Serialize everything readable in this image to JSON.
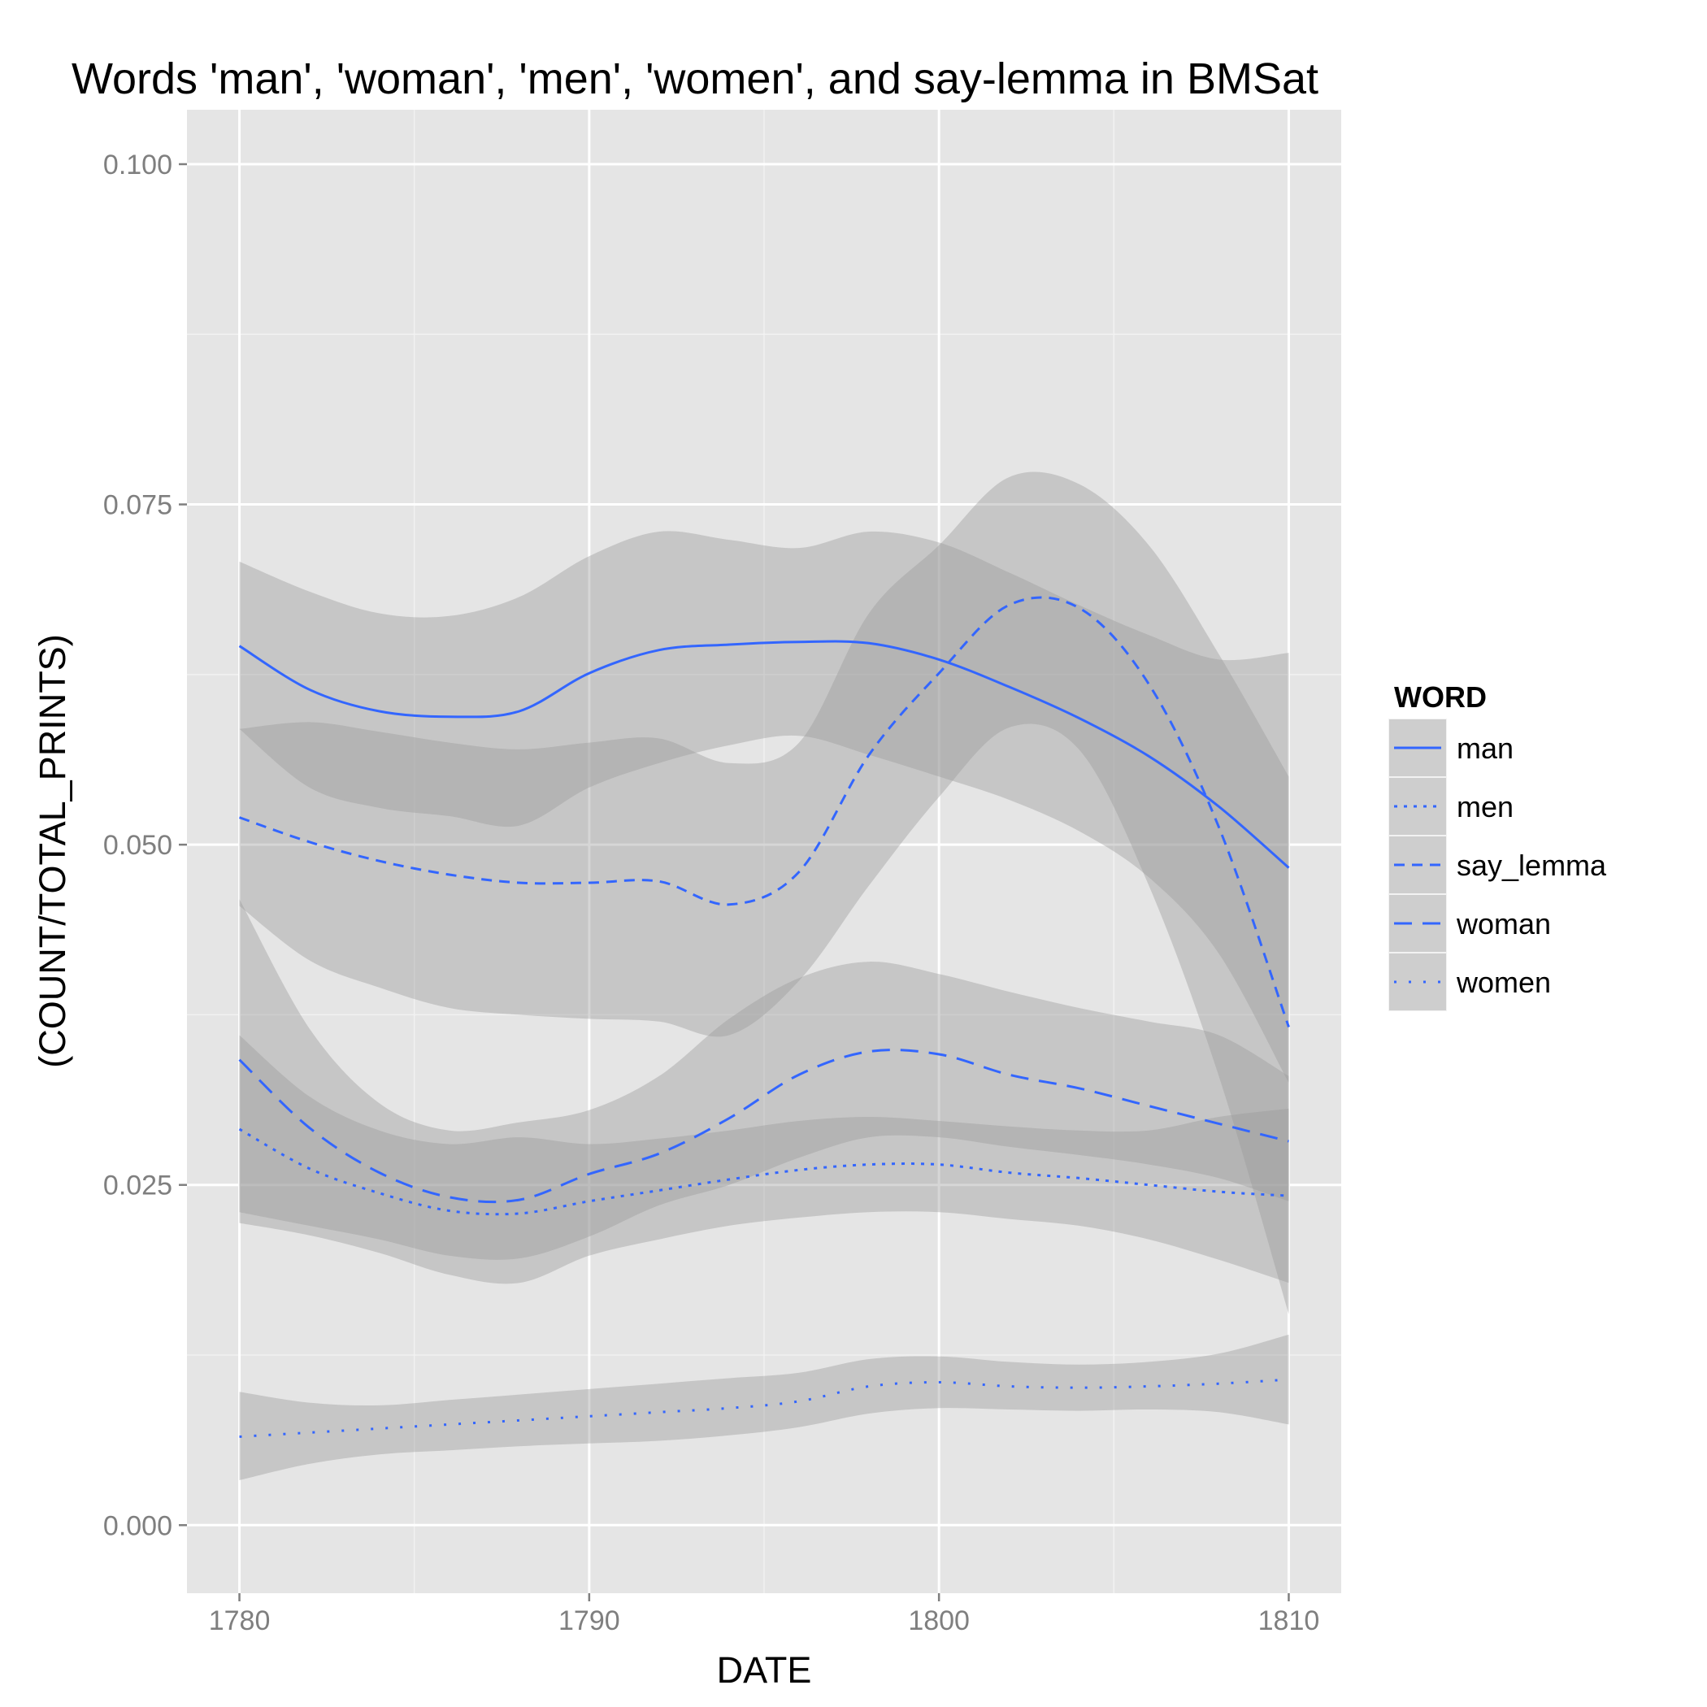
{
  "chart_data": {
    "type": "line",
    "title": "Words 'man', 'woman', 'men', 'women', and say-lemma in BMSat",
    "xlabel": "DATE",
    "ylabel": "(COUNT/TOTAL_PRINTS)",
    "xlim": [
      1778.5,
      1811.5
    ],
    "ylim": [
      -0.005,
      0.104
    ],
    "x_ticks": [
      1780,
      1790,
      1800,
      1810
    ],
    "x_tick_labels": [
      "1780",
      "1790",
      "1800",
      "1810"
    ],
    "x_minor_ticks": [
      1785,
      1795,
      1805
    ],
    "y_ticks": [
      0.0,
      0.025,
      0.05,
      0.075,
      0.1
    ],
    "y_tick_labels": [
      "0.000",
      "0.025",
      "0.050",
      "0.075",
      "0.100"
    ],
    "y_minor_ticks": [
      0.0125,
      0.0375,
      0.0625,
      0.0875
    ],
    "grid": true,
    "legend": {
      "title": "WORD",
      "position": "right"
    },
    "line_color": "#3366FF",
    "band_color": "#999999",
    "panel_color": "#E5E5E5",
    "x": [
      1780,
      1782,
      1784,
      1786,
      1788,
      1790,
      1792,
      1794,
      1796,
      1798,
      1800,
      1802,
      1804,
      1806,
      1808,
      1810
    ],
    "series": [
      {
        "name": "man",
        "dash": "solid",
        "values": [
          0.0646,
          0.0614,
          0.0598,
          0.0594,
          0.0598,
          0.0626,
          0.0643,
          0.0647,
          0.0649,
          0.0648,
          0.0636,
          0.0616,
          0.0593,
          0.0565,
          0.0528,
          0.0483
        ],
        "lower": [
          0.0585,
          0.0542,
          0.0527,
          0.0521,
          0.0514,
          0.0542,
          0.056,
          0.0573,
          0.058,
          0.0566,
          0.055,
          0.0533,
          0.051,
          0.0476,
          0.042,
          0.0325
        ],
        "upper": [
          0.0708,
          0.0686,
          0.067,
          0.0668,
          0.0682,
          0.0712,
          0.073,
          0.0724,
          0.0718,
          0.073,
          0.0722,
          0.07,
          0.0676,
          0.0654,
          0.0636,
          0.0641
        ]
      },
      {
        "name": "men",
        "dash": "dotted-dense",
        "values": [
          0.0291,
          0.0262,
          0.0244,
          0.0231,
          0.0229,
          0.0238,
          0.0246,
          0.0254,
          0.0261,
          0.0265,
          0.0265,
          0.0259,
          0.0255,
          0.025,
          0.0245,
          0.0242
        ],
        "lower": [
          0.0222,
          0.0213,
          0.02,
          0.0184,
          0.0178,
          0.0198,
          0.021,
          0.022,
          0.0226,
          0.023,
          0.023,
          0.0225,
          0.022,
          0.021,
          0.0195,
          0.0178
        ],
        "upper": [
          0.036,
          0.0315,
          0.029,
          0.028,
          0.0285,
          0.028,
          0.0284,
          0.029,
          0.0297,
          0.03,
          0.0297,
          0.0293,
          0.029,
          0.029,
          0.03,
          0.0306
        ]
      },
      {
        "name": "say_lemma",
        "dash": "dashed-short",
        "values": [
          0.052,
          0.0502,
          0.0488,
          0.0478,
          0.0472,
          0.0472,
          0.0473,
          0.0456,
          0.048,
          0.0566,
          0.0626,
          0.0676,
          0.0674,
          0.0618,
          0.0513,
          0.0366
        ],
        "lower": [
          0.0455,
          0.0415,
          0.0395,
          0.038,
          0.0375,
          0.0372,
          0.037,
          0.036,
          0.04,
          0.047,
          0.0535,
          0.0586,
          0.057,
          0.047,
          0.033,
          0.0155
        ],
        "upper": [
          0.0585,
          0.059,
          0.0583,
          0.0575,
          0.057,
          0.0575,
          0.0578,
          0.056,
          0.0575,
          0.067,
          0.072,
          0.077,
          0.0765,
          0.072,
          0.064,
          0.055
        ]
      },
      {
        "name": "woman",
        "dash": "dashed-long",
        "values": [
          0.0342,
          0.0292,
          0.0259,
          0.0241,
          0.0239,
          0.0258,
          0.0273,
          0.0299,
          0.0331,
          0.0348,
          0.0346,
          0.0331,
          0.0321,
          0.0308,
          0.0295,
          0.0282
        ],
        "lower": [
          0.023,
          0.022,
          0.021,
          0.0198,
          0.0196,
          0.0212,
          0.0235,
          0.025,
          0.027,
          0.0285,
          0.0285,
          0.0278,
          0.0272,
          0.0265,
          0.0255,
          0.0238
        ],
        "upper": [
          0.046,
          0.0365,
          0.031,
          0.029,
          0.0296,
          0.0305,
          0.033,
          0.0372,
          0.0402,
          0.0414,
          0.0405,
          0.0392,
          0.038,
          0.037,
          0.036,
          0.033
        ]
      },
      {
        "name": "women",
        "dash": "dotted-sparse",
        "values": [
          0.0065,
          0.0068,
          0.0071,
          0.0074,
          0.0077,
          0.008,
          0.0083,
          0.0086,
          0.0091,
          0.0102,
          0.0105,
          0.0102,
          0.0101,
          0.0102,
          0.0104,
          0.0107
        ],
        "lower": [
          0.0033,
          0.0045,
          0.0052,
          0.0055,
          0.0058,
          0.006,
          0.0062,
          0.0066,
          0.0072,
          0.0082,
          0.0086,
          0.0085,
          0.0084,
          0.0085,
          0.0083,
          0.0074
        ],
        "upper": [
          0.0098,
          0.009,
          0.0088,
          0.0092,
          0.0096,
          0.01,
          0.0104,
          0.0108,
          0.0112,
          0.0122,
          0.0124,
          0.012,
          0.0118,
          0.012,
          0.0126,
          0.014
        ]
      }
    ]
  }
}
